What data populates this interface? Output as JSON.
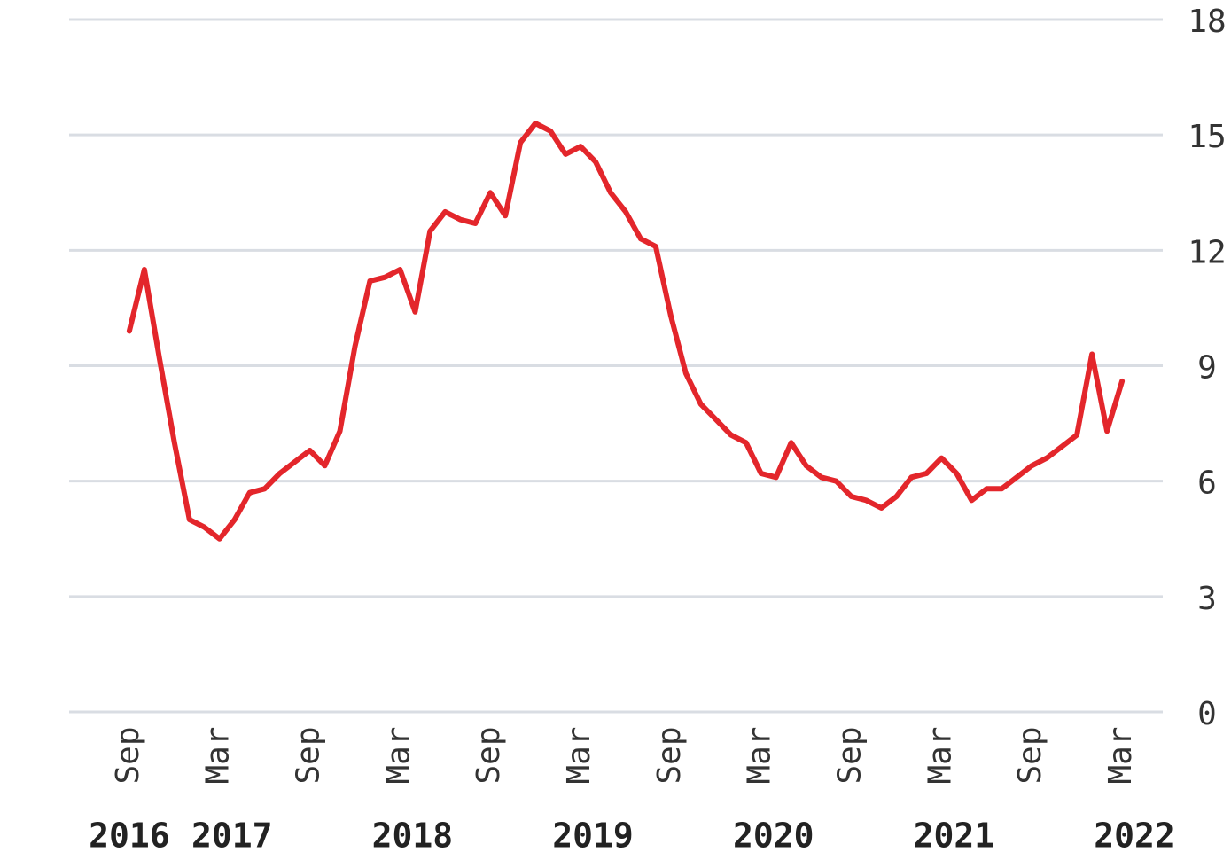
{
  "chart_data": {
    "type": "line",
    "x": [
      "2016-09",
      "2016-10",
      "2016-11",
      "2016-12",
      "2017-01",
      "2017-02",
      "2017-03",
      "2017-04",
      "2017-05",
      "2017-06",
      "2017-07",
      "2017-08",
      "2017-09",
      "2017-10",
      "2017-11",
      "2017-12",
      "2018-01",
      "2018-02",
      "2018-03",
      "2018-04",
      "2018-05",
      "2018-06",
      "2018-07",
      "2018-08",
      "2018-09",
      "2018-10",
      "2018-11",
      "2018-12",
      "2019-01",
      "2019-02",
      "2019-03",
      "2019-04",
      "2019-05",
      "2019-06",
      "2019-07",
      "2019-08",
      "2019-09",
      "2019-10",
      "2019-11",
      "2019-12",
      "2020-01",
      "2020-02",
      "2020-03",
      "2020-04",
      "2020-05",
      "2020-06",
      "2020-07",
      "2020-08",
      "2020-09",
      "2020-10",
      "2020-11",
      "2020-12",
      "2021-01",
      "2021-02",
      "2021-03",
      "2021-04",
      "2021-05",
      "2021-06",
      "2021-07",
      "2021-08",
      "2021-09",
      "2021-10",
      "2021-11",
      "2021-12",
      "2022-01",
      "2022-02",
      "2022-03"
    ],
    "values": [
      9.9,
      11.5,
      9.2,
      7.0,
      5.0,
      4.8,
      4.5,
      5.0,
      5.7,
      5.8,
      6.2,
      6.5,
      6.8,
      6.4,
      7.3,
      9.5,
      11.2,
      11.3,
      11.5,
      10.4,
      12.5,
      13.0,
      12.8,
      12.7,
      13.5,
      12.9,
      14.8,
      15.3,
      15.1,
      14.5,
      14.7,
      14.3,
      13.5,
      13.0,
      12.3,
      12.1,
      10.3,
      8.8,
      8.0,
      7.6,
      7.2,
      7.0,
      6.2,
      6.1,
      7.0,
      6.4,
      6.1,
      6.0,
      5.6,
      5.5,
      5.3,
      5.6,
      6.1,
      6.2,
      6.6,
      6.2,
      5.5,
      5.8,
      5.8,
      6.1,
      6.4,
      6.6,
      6.9,
      7.2,
      9.3,
      7.3,
      8.6
    ],
    "color": "#e3262b",
    "xlim": [
      "2016-05",
      "2022-05"
    ],
    "xticks": [
      {
        "value": "2016-09",
        "label": "Sep"
      },
      {
        "value": "2017-03",
        "label": "Mar"
      },
      {
        "value": "2017-09",
        "label": "Sep"
      },
      {
        "value": "2018-03",
        "label": "Mar"
      },
      {
        "value": "2018-09",
        "label": "Sep"
      },
      {
        "value": "2019-03",
        "label": "Mar"
      },
      {
        "value": "2019-09",
        "label": "Sep"
      },
      {
        "value": "2020-03",
        "label": "Mar"
      },
      {
        "value": "2020-09",
        "label": "Sep"
      },
      {
        "value": "2021-03",
        "label": "Mar"
      },
      {
        "value": "2021-09",
        "label": "Sep"
      },
      {
        "value": "2022-03",
        "label": "Mar"
      }
    ],
    "year_labels": [
      {
        "value": "2016-09",
        "label": "2016"
      },
      {
        "value": "2017-03",
        "label": "2017"
      },
      {
        "value": "2018-03",
        "label": "2018"
      },
      {
        "value": "2019-03",
        "label": "2019"
      },
      {
        "value": "2020-03",
        "label": "2020"
      },
      {
        "value": "2021-03",
        "label": "2021"
      },
      {
        "value": "2022-03",
        "label": "2022"
      }
    ],
    "ylim": [
      0,
      18
    ],
    "yticks": [
      0,
      3,
      6,
      9,
      12,
      15,
      18
    ],
    "grid": true
  }
}
